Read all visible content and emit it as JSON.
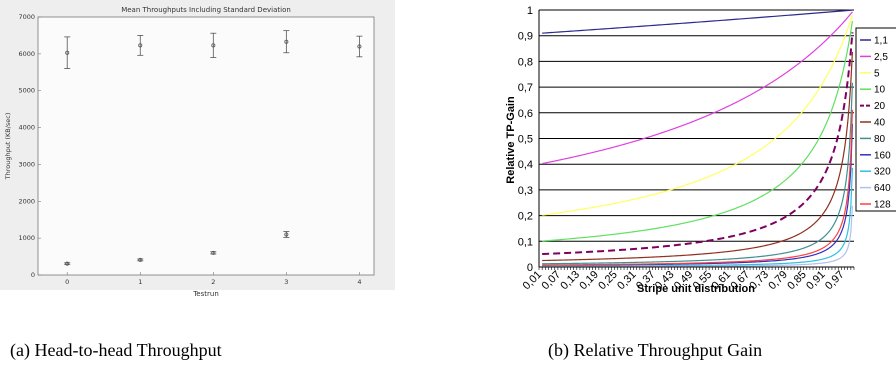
{
  "captions": {
    "a": "(a) Head-to-head Throughput",
    "b": "(b) Relative Throughput Gain"
  },
  "chart_data": [
    {
      "type": "scatter",
      "title": "Mean Throughputs Including Standard Deviation",
      "xlabel": "Testrun",
      "ylabel": "Throughput (KB/sec)",
      "xlim": [
        -0.4,
        4.2
      ],
      "ylim": [
        0,
        7000
      ],
      "xticks": [
        "0",
        "1",
        "2",
        "3",
        "4"
      ],
      "yticks": [
        "0",
        "1000",
        "2000",
        "3000",
        "4000",
        "5000",
        "6000",
        "7000"
      ],
      "grid": false,
      "series": [
        {
          "x": [
            0,
            1,
            2,
            3,
            4
          ],
          "values": [
            6030,
            6230,
            6230,
            6330,
            6200
          ],
          "err": [
            430,
            270,
            330,
            300,
            280
          ]
        },
        {
          "x": [
            0,
            1,
            2,
            3,
            4
          ],
          "values": [
            310,
            410,
            600,
            1100,
            null
          ],
          "err": [
            20,
            25,
            30,
            80,
            null
          ]
        }
      ],
      "colors": {
        "marker": "#555555",
        "frame": "#666666",
        "background": "#f5f5f5"
      }
    },
    {
      "type": "line",
      "xlabel": "Stripe unit distribution",
      "ylabel": "Relative TP-Gain",
      "ylim": [
        0,
        1
      ],
      "xlim": [
        0,
        1
      ],
      "yticks": [
        "0",
        "0,1",
        "0,2",
        "0,3",
        "0,4",
        "0,5",
        "0,6",
        "0,7",
        "0,8",
        "0,9",
        "1"
      ],
      "xticks": [
        "0,01",
        "0,07",
        "0,13",
        "0,19",
        "0,25",
        "0,31",
        "0,37",
        "0,43",
        "0,49",
        "0,55",
        "0,61",
        "0,67",
        "0,73",
        "0,79",
        "0,85",
        "0,91",
        "0,97"
      ],
      "grid": true,
      "legend": "right",
      "series": [
        {
          "name": "1,1",
          "color": "#2b2b8f",
          "dash": false
        },
        {
          "name": "2,5",
          "color": "#e040e0",
          "dash": false
        },
        {
          "name": "5",
          "color": "#ffff60",
          "dash": false
        },
        {
          "name": "10",
          "color": "#60e060",
          "dash": false
        },
        {
          "name": "20",
          "color": "#800060",
          "dash": true
        },
        {
          "name": "40",
          "color": "#903020",
          "dash": false
        },
        {
          "name": "80",
          "color": "#409090",
          "dash": false
        },
        {
          "name": "160",
          "color": "#3030c0",
          "dash": false
        },
        {
          "name": "320",
          "color": "#30c0e0",
          "dash": false
        },
        {
          "name": "640",
          "color": "#b0c0f0",
          "dash": false
        },
        {
          "name": "128",
          "color": "#ff4040",
          "dash": false
        }
      ]
    }
  ]
}
